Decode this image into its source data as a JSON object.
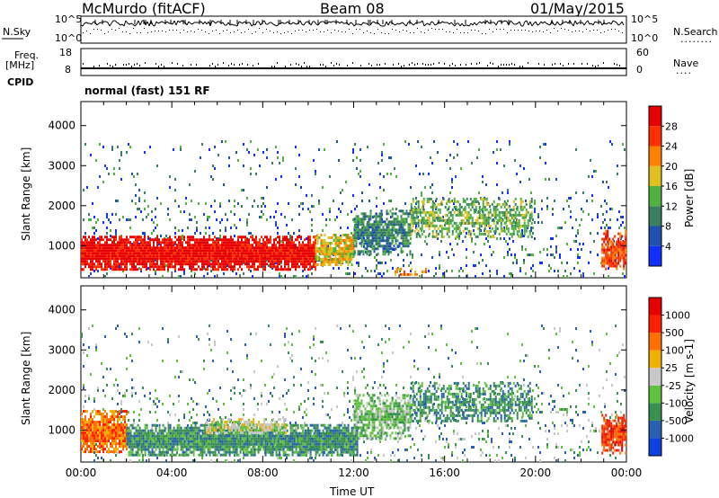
{
  "header": {
    "station": "McMurdo (fitACF)",
    "beam": "Beam 08",
    "date": "01/May/2015"
  },
  "strip": {
    "nsky_label": "N.Sky",
    "nsearch_label": "N.Search",
    "nsearch_dots": "........",
    "freq_label_line1": "Freq.",
    "freq_label_line2": "[MHz]",
    "freq_ticks": [
      "18",
      "8"
    ],
    "nave_ticks": [
      "60",
      "0"
    ],
    "nave_label": "Nave",
    "nave_dots": "....",
    "noise_ticks": [
      "10^5",
      "10^0"
    ],
    "cpid_label": "CPID",
    "cpid_value": "normal (fast) 151 RF"
  },
  "chart_data": [
    {
      "type": "heatmap",
      "panel": "power",
      "ylabel": "Slant Range [km]",
      "xlabel": "Time UT",
      "y_ticks": [
        1000,
        2000,
        3000,
        4000
      ],
      "ylim": [
        200,
        4600
      ],
      "xlim_hours": [
        0,
        24
      ],
      "colorbar": {
        "label": "Power [dB]",
        "ticks": [
          "4",
          "8",
          "12",
          "16",
          "20",
          "24",
          "28"
        ],
        "colors": [
          "#1030ff",
          "#2050b0",
          "#3a8060",
          "#50b040",
          "#e0c020",
          "#ff8000",
          "#ff3000",
          "#e80000"
        ]
      },
      "bands": [
        {
          "t0": 0,
          "t1": 10.3,
          "r0": 420,
          "r1": 1250,
          "level": 7,
          "density": 0.96
        },
        {
          "t0": 10.3,
          "t1": 12,
          "r0": 500,
          "r1": 1300,
          "level": 4,
          "density": 0.8
        },
        {
          "t0": 12,
          "t1": 14.5,
          "r0": 800,
          "r1": 1900,
          "level": 2,
          "density": 0.75
        },
        {
          "t0": 14.5,
          "t1": 19.8,
          "r0": 1200,
          "r1": 2200,
          "level": 3,
          "density": 0.55
        },
        {
          "t0": 22.9,
          "t1": 24,
          "r0": 450,
          "r1": 1400,
          "level": 6,
          "density": 0.8
        },
        {
          "t0": 13.8,
          "t1": 15.2,
          "r0": 250,
          "r1": 450,
          "level": 5,
          "density": 0.55
        }
      ],
      "scatter_density": 0.09
    },
    {
      "type": "heatmap",
      "panel": "velocity",
      "ylabel": "Slant Range [km]",
      "xlabel": "Time UT",
      "x_ticks": [
        "00:00",
        "04:00",
        "08:00",
        "12:00",
        "16:00",
        "20:00",
        "00:00"
      ],
      "y_ticks": [
        1000,
        2000,
        3000,
        4000
      ],
      "ylim": [
        200,
        4600
      ],
      "xlim_hours": [
        0,
        24
      ],
      "colorbar": {
        "label": "Velocity [m s-1]",
        "ticks": [
          "1000",
          "500",
          "100",
          "25",
          "-25",
          "-100",
          "-500",
          "-1000"
        ],
        "colors": [
          "#1040e0",
          "#2a60b0",
          "#3a9050",
          "#60c040",
          "#c8c8c8",
          "#f0b000",
          "#ff7000",
          "#ff2000",
          "#e80000"
        ]
      },
      "bands": [
        {
          "t0": 0,
          "t1": 2,
          "r0": 450,
          "r1": 1500,
          "level": 6,
          "density": 0.92
        },
        {
          "t0": 2,
          "t1": 12.2,
          "r0": 380,
          "r1": 1150,
          "level": 2,
          "density": 0.95
        },
        {
          "t0": 5.5,
          "t1": 9,
          "r0": 900,
          "r1": 1300,
          "level": 4,
          "density": 0.7
        },
        {
          "t0": 12,
          "t1": 14.5,
          "r0": 800,
          "r1": 1900,
          "level": 3,
          "density": 0.75
        },
        {
          "t0": 14.5,
          "t1": 19.8,
          "r0": 1200,
          "r1": 2200,
          "level": 2,
          "density": 0.55
        },
        {
          "t0": 22.9,
          "t1": 24,
          "r0": 450,
          "r1": 1400,
          "level": 7,
          "density": 0.8
        }
      ],
      "scatter_density": 0.09
    }
  ]
}
